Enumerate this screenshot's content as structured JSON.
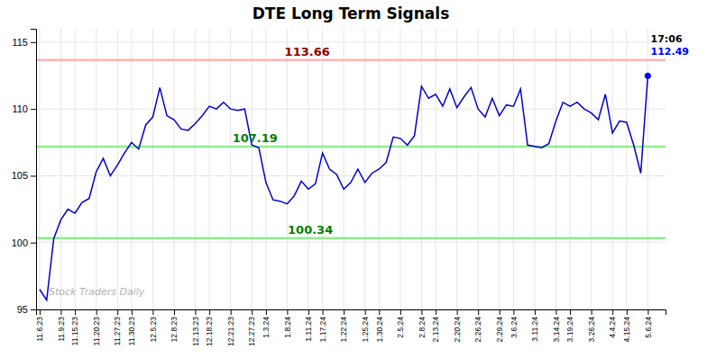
{
  "chart_data": {
    "type": "line",
    "title": "DTE Long Term Signals",
    "categories": [
      "11.6.23",
      null,
      null,
      "11.9.23",
      null,
      "11.15.23",
      null,
      null,
      "11.20.23",
      null,
      null,
      "11.27.23",
      null,
      "11.30.23",
      null,
      null,
      "12.5.23",
      null,
      null,
      "12.8.23",
      null,
      null,
      "12.13.23",
      null,
      "12.18.23",
      null,
      null,
      "12.21.23",
      null,
      null,
      "12.27.23",
      null,
      "1.3.24",
      null,
      null,
      "1.8.24",
      null,
      null,
      "1.11.24",
      null,
      "1.17.24",
      null,
      null,
      "1.22.24",
      null,
      null,
      "1.25.24",
      null,
      "1.30.24",
      null,
      null,
      "2.5.24",
      null,
      null,
      "2.8.24",
      null,
      "2.13.24",
      null,
      null,
      "2.20.24",
      null,
      null,
      "2.26.24",
      null,
      null,
      "2.29.24",
      null,
      "3.6.24",
      null,
      null,
      "3.11.24",
      null,
      null,
      "3.14.24",
      null,
      "3.19.24",
      null,
      null,
      "3.26.24",
      null,
      null,
      "4.4.24",
      null,
      "4.15.24",
      null,
      null,
      "5.6.24"
    ],
    "values": [
      96.5,
      95.7,
      100.3,
      101.7,
      102.5,
      102.2,
      103.0,
      103.3,
      105.3,
      106.3,
      105.0,
      105.8,
      106.7,
      107.5,
      107.0,
      108.8,
      109.4,
      111.6,
      109.5,
      109.2,
      108.5,
      108.4,
      108.9,
      109.5,
      110.2,
      110.0,
      110.5,
      110.0,
      109.9,
      110.0,
      107.3,
      107.1,
      104.5,
      103.2,
      103.1,
      102.9,
      103.5,
      104.6,
      104.0,
      104.4,
      106.7,
      105.5,
      105.1,
      104.0,
      104.5,
      105.5,
      104.5,
      105.2,
      105.5,
      106.0,
      107.9,
      107.8,
      107.3,
      108.0,
      111.7,
      110.8,
      111.1,
      110.2,
      111.5,
      110.1,
      110.9,
      111.6,
      110.0,
      109.4,
      110.8,
      109.5,
      110.3,
      110.2,
      111.5,
      107.3,
      107.2,
      107.1,
      107.4,
      109.1,
      110.5,
      110.2,
      110.5,
      110.0,
      109.7,
      109.2,
      111.1,
      108.2,
      109.1,
      109.0,
      107.3,
      105.2,
      112.49
    ],
    "color": "#0000cc",
    "ylim": [
      95,
      116
    ],
    "yticks": [
      95,
      100,
      105,
      110,
      115
    ],
    "grid": true,
    "hlines": [
      {
        "value": 113.66,
        "color": "#ffb3b3",
        "label_color": "#8b0000"
      },
      {
        "value": 107.19,
        "color": "#90ee90",
        "label_color": "#008000"
      },
      {
        "value": 100.34,
        "color": "#90ee90",
        "label_color": "#008000"
      }
    ],
    "last_point": {
      "label": "17:06",
      "value": 112.49,
      "color": "#0000ff"
    },
    "watermark": "Stock Traders Daily"
  }
}
